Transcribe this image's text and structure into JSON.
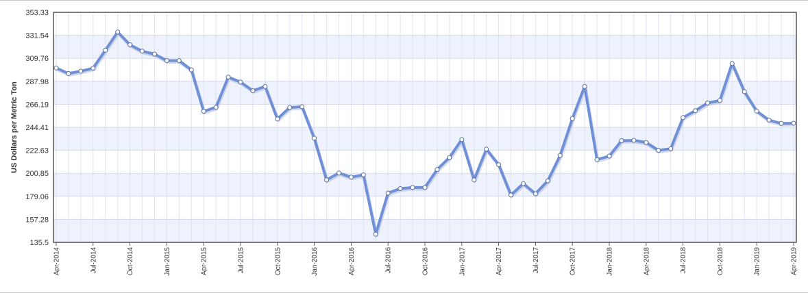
{
  "chart_data": {
    "type": "line",
    "ylabel": "US Dollars per Metric Ton",
    "xlabel": "",
    "title": "",
    "ylim": [
      135.5,
      353.33
    ],
    "yticks": [
      "353.33",
      "331.54",
      "309.76",
      "287.98",
      "266.19",
      "244.41",
      "222.63",
      "200.85",
      "179.06",
      "157.28",
      "135.5"
    ],
    "xticks": [
      "Apr-2014",
      "Jul-2014",
      "Oct-2014",
      "Jan-2015",
      "Apr-2015",
      "Jul-2015",
      "Oct-2015",
      "Jan-2016",
      "Apr-2016",
      "Jul-2016",
      "Oct-2016",
      "Jan-2017",
      "Apr-2017",
      "Jul-2017",
      "Oct-2017",
      "Jan-2018",
      "Apr-2018",
      "Jul-2018",
      "Oct-2018",
      "Jan-2019",
      "Apr-2019"
    ],
    "grid": true,
    "colors": {
      "line": "#6f8fd6",
      "line_shadow": "#b8c0d8",
      "band": "#eef2fc",
      "frame": "#555555"
    },
    "series": [
      {
        "x": [
          "Apr-2014",
          "May-2014",
          "Jun-2014",
          "Jul-2014",
          "Aug-2014",
          "Sep-2014",
          "Oct-2014",
          "Nov-2014",
          "Dec-2014",
          "Jan-2015",
          "Feb-2015",
          "Mar-2015",
          "Apr-2015",
          "May-2015",
          "Jun-2015",
          "Jul-2015",
          "Aug-2015",
          "Sep-2015",
          "Oct-2015",
          "Nov-2015",
          "Dec-2015",
          "Jan-2016",
          "Feb-2016",
          "Mar-2016",
          "Apr-2016",
          "May-2016",
          "Jun-2016",
          "Jul-2016",
          "Aug-2016",
          "Sep-2016",
          "Oct-2016",
          "Nov-2016",
          "Dec-2016",
          "Jan-2017",
          "Feb-2017",
          "Mar-2017",
          "Apr-2017",
          "May-2017",
          "Jun-2017",
          "Jul-2017",
          "Aug-2017",
          "Sep-2017",
          "Oct-2017",
          "Nov-2017",
          "Dec-2017",
          "Jan-2018",
          "Feb-2018",
          "Mar-2018",
          "Apr-2018",
          "May-2018",
          "Jun-2018",
          "Jul-2018",
          "Aug-2018",
          "Sep-2018",
          "Oct-2018",
          "Nov-2018",
          "Dec-2018",
          "Jan-2019",
          "Feb-2019",
          "Mar-2019",
          "Apr-2019"
        ],
        "values": [
          300.6,
          295.4,
          297.6,
          300.4,
          317.4,
          334.7,
          322.6,
          316.5,
          313.8,
          307.6,
          307.6,
          298.8,
          259.6,
          263.4,
          292.0,
          287.3,
          279.1,
          283.1,
          252.3,
          263.2,
          263.9,
          234.1,
          194.6,
          201.2,
          197.2,
          199.4,
          143.2,
          182.2,
          186.4,
          187.4,
          187.4,
          204.5,
          215.9,
          232.9,
          194.6,
          223.8,
          209.1,
          180.3,
          191.1,
          181.5,
          193.8,
          217.8,
          252.8,
          283.1,
          213.8,
          217.2,
          231.8,
          232.1,
          230.1,
          222.6,
          224.2,
          253.7,
          260.2,
          267.5,
          269.8,
          304.9,
          278.1,
          259.8,
          251.2,
          248.1,
          248.3
        ]
      }
    ]
  }
}
